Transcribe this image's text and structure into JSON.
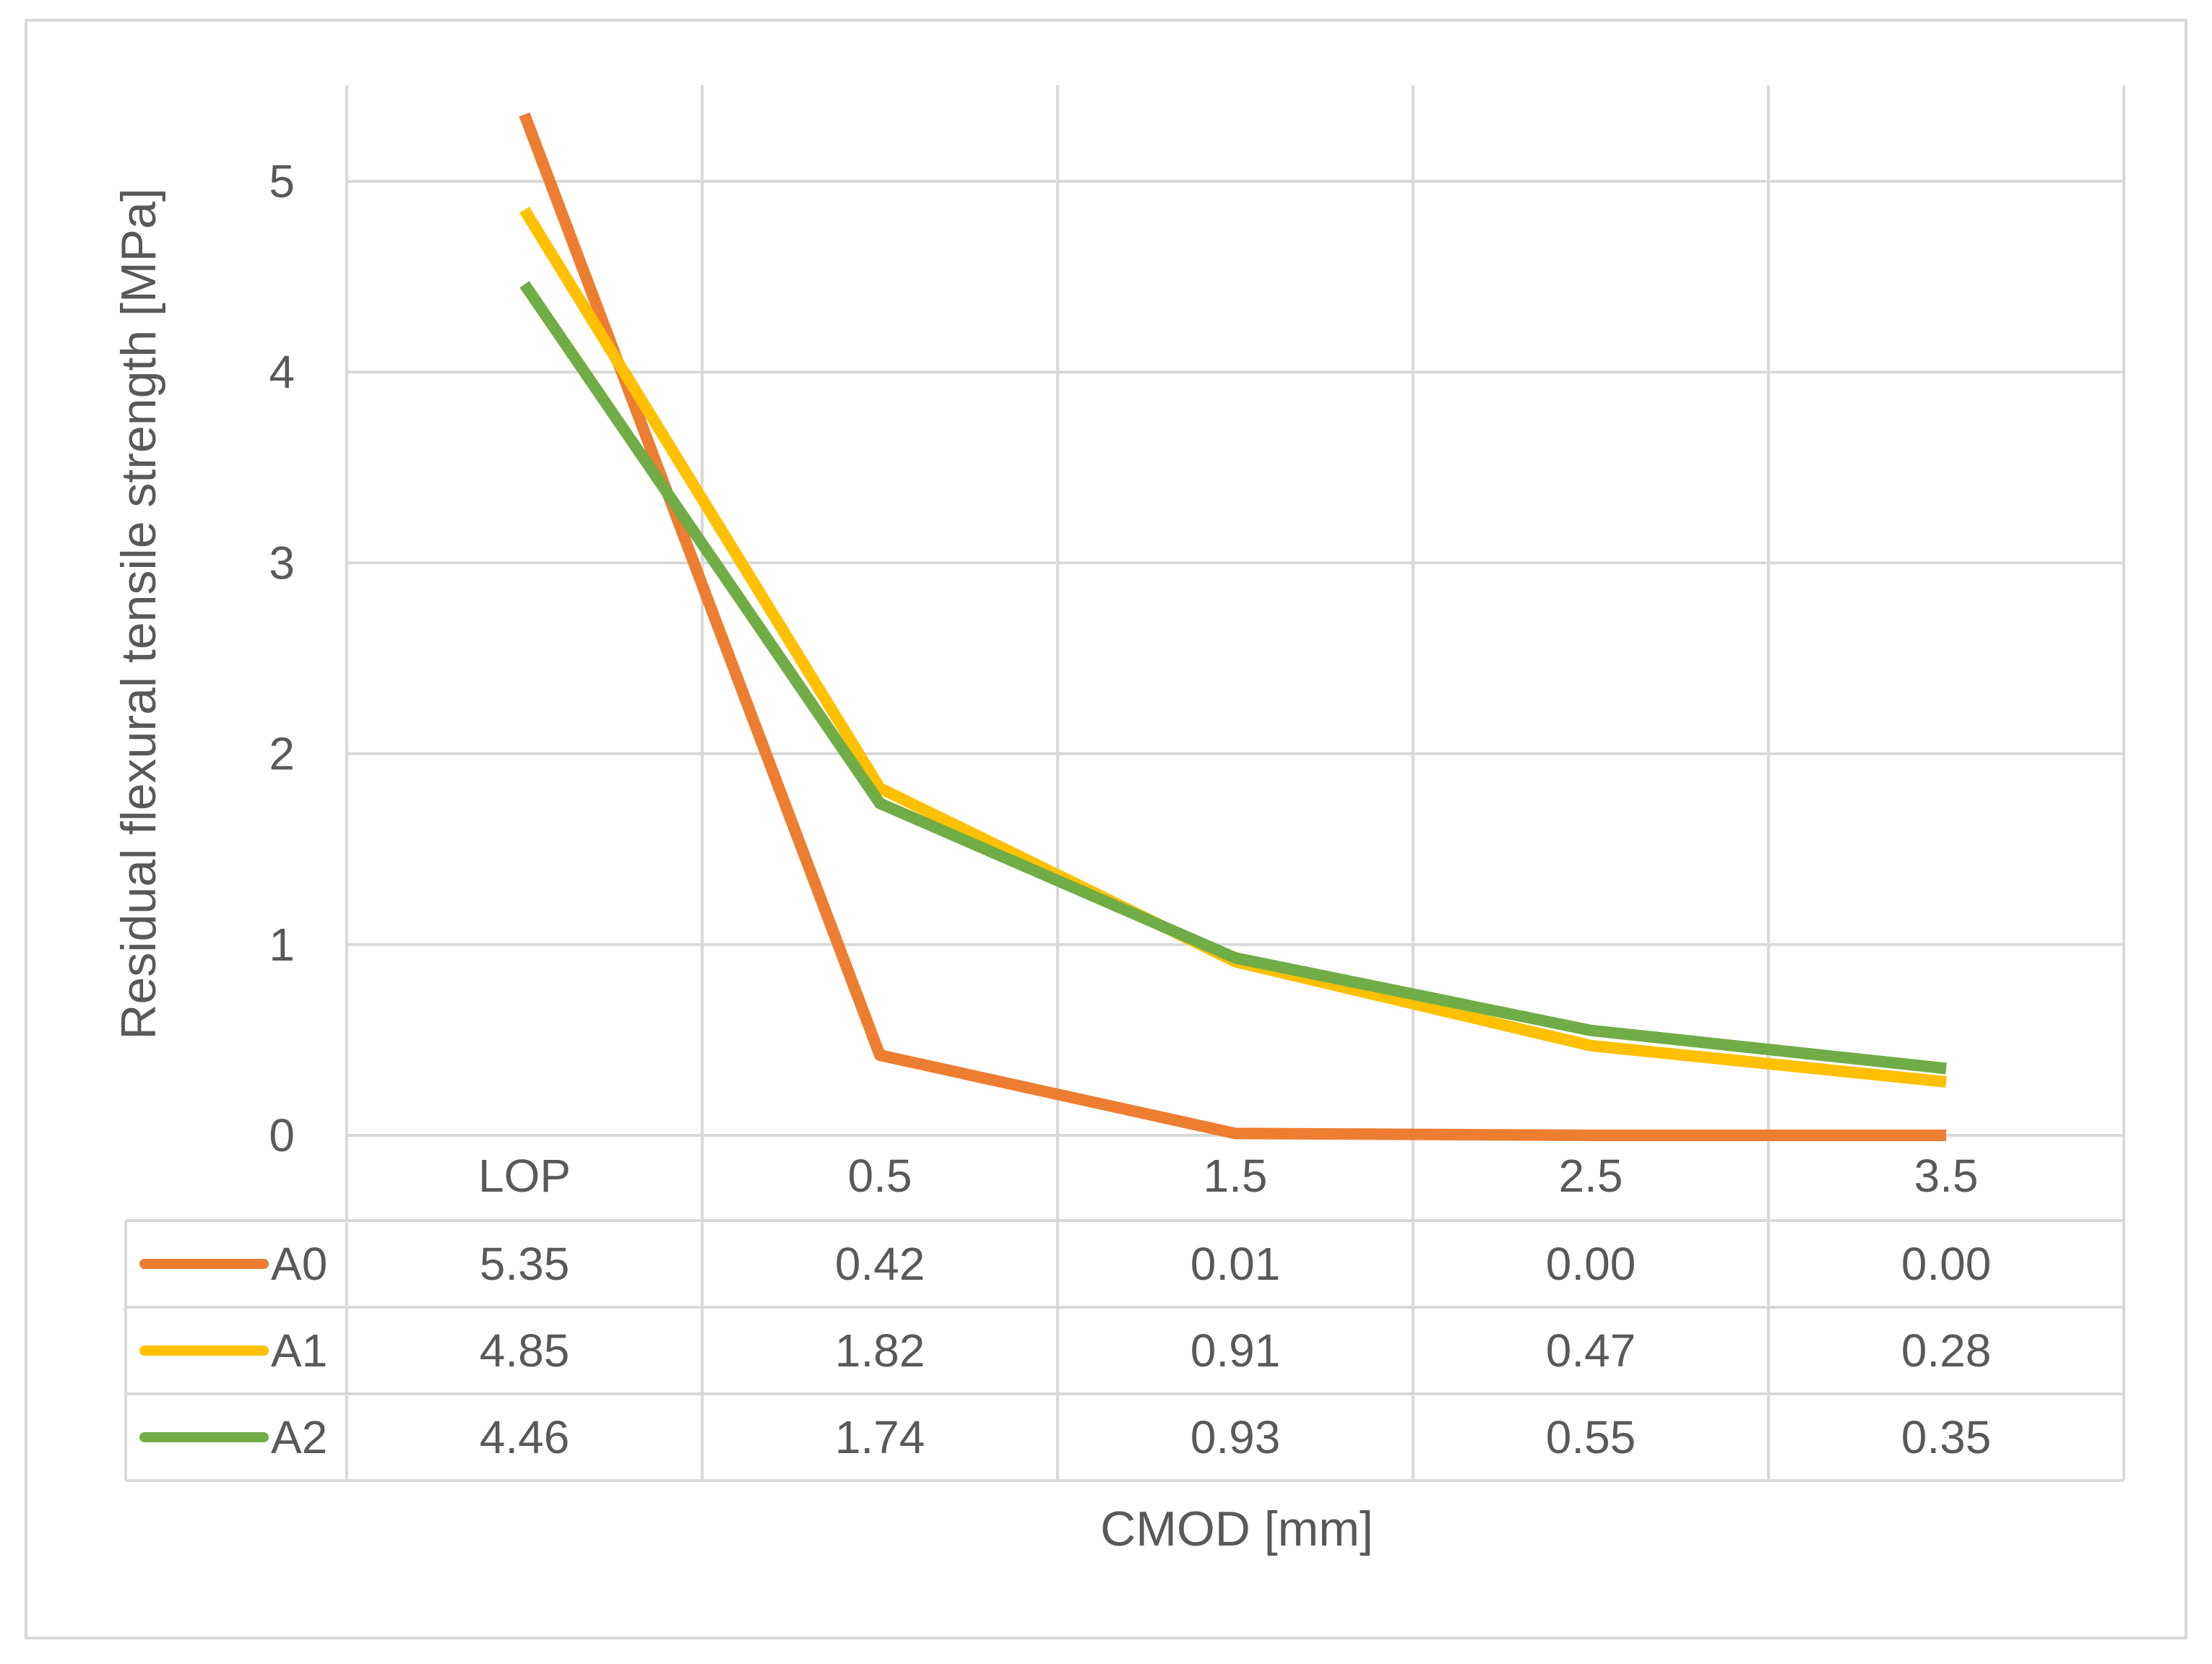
{
  "chart_data": {
    "type": "line",
    "title": "",
    "xlabel": "CMOD [mm]",
    "ylabel": "Residual flexural tensile strength [MPa]",
    "categories": [
      "LOP",
      "0.5",
      "1.5",
      "2.5",
      "3.5"
    ],
    "ylim": [
      0,
      5.5
    ],
    "yticks": [
      0,
      1,
      2,
      3,
      4,
      5
    ],
    "grid": true,
    "legend": "data-table",
    "series": [
      {
        "name": "A0",
        "color": "#ED7D31",
        "values": [
          5.35,
          0.42,
          0.01,
          0.0,
          0.0
        ],
        "labels": [
          "5.35",
          "0.42",
          "0.01",
          "0.00",
          "0.00"
        ]
      },
      {
        "name": "A1",
        "color": "#FFC000",
        "values": [
          4.85,
          1.82,
          0.91,
          0.47,
          0.28
        ],
        "labels": [
          "4.85",
          "1.82",
          "0.91",
          "0.47",
          "0.28"
        ]
      },
      {
        "name": "A2",
        "color": "#70AD47",
        "values": [
          4.46,
          1.74,
          0.93,
          0.55,
          0.35
        ],
        "labels": [
          "4.46",
          "1.74",
          "0.93",
          "0.55",
          "0.35"
        ]
      }
    ]
  }
}
